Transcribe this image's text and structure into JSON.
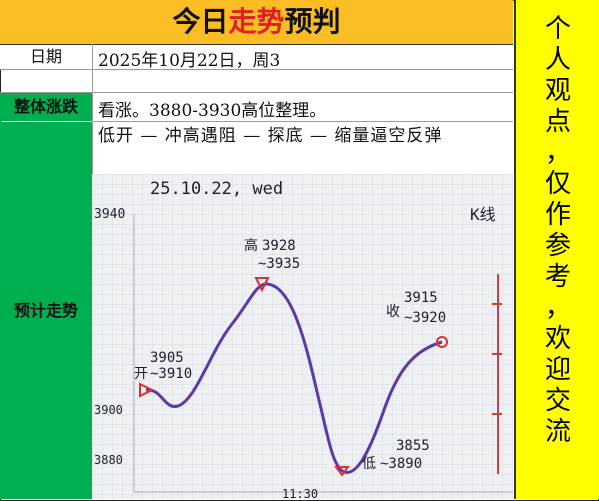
{
  "title": {
    "prefix": "今日",
    "highlight": "走势",
    "suffix": "预判"
  },
  "sidebar": {
    "chars": [
      "个",
      "人",
      "观",
      "点",
      "，",
      "仅",
      "作",
      "参",
      "考",
      "，",
      "欢",
      "迎",
      "交",
      "流"
    ]
  },
  "rows": {
    "date_label": "日期",
    "date_value": "2025年10月22日，周3",
    "overall_label": "整体涨跌",
    "overall_value": "看涨。3880-3930高位整理。",
    "forecast_label": "预计走势",
    "forecast_text": "低开 — 冲高遇阻 — 探底 — 缩量逼空反弹"
  },
  "sketch": {
    "header": "25.10.22, wed",
    "axis_ticks": [
      "3940",
      "3900",
      "3880",
      "11:30"
    ],
    "corner_note": "K线",
    "annotations": {
      "open": {
        "label": "开",
        "value": "3905",
        "range": "~3910"
      },
      "high": {
        "label": "高",
        "value": "3928",
        "range": "~3935"
      },
      "low": {
        "label": "低",
        "value": "3855",
        "range": "~3890"
      },
      "close": {
        "label": "收",
        "value": "3915",
        "range": "~3920"
      }
    },
    "colors": {
      "line": "#5a3aa8",
      "marker": "#d83030",
      "ink": "#1e1e2e"
    }
  },
  "colors": {
    "title_bg": "#fbbd24",
    "sidebar_bg": "#ffff00",
    "label_green": "#00b050",
    "highlight": "#e02020"
  }
}
